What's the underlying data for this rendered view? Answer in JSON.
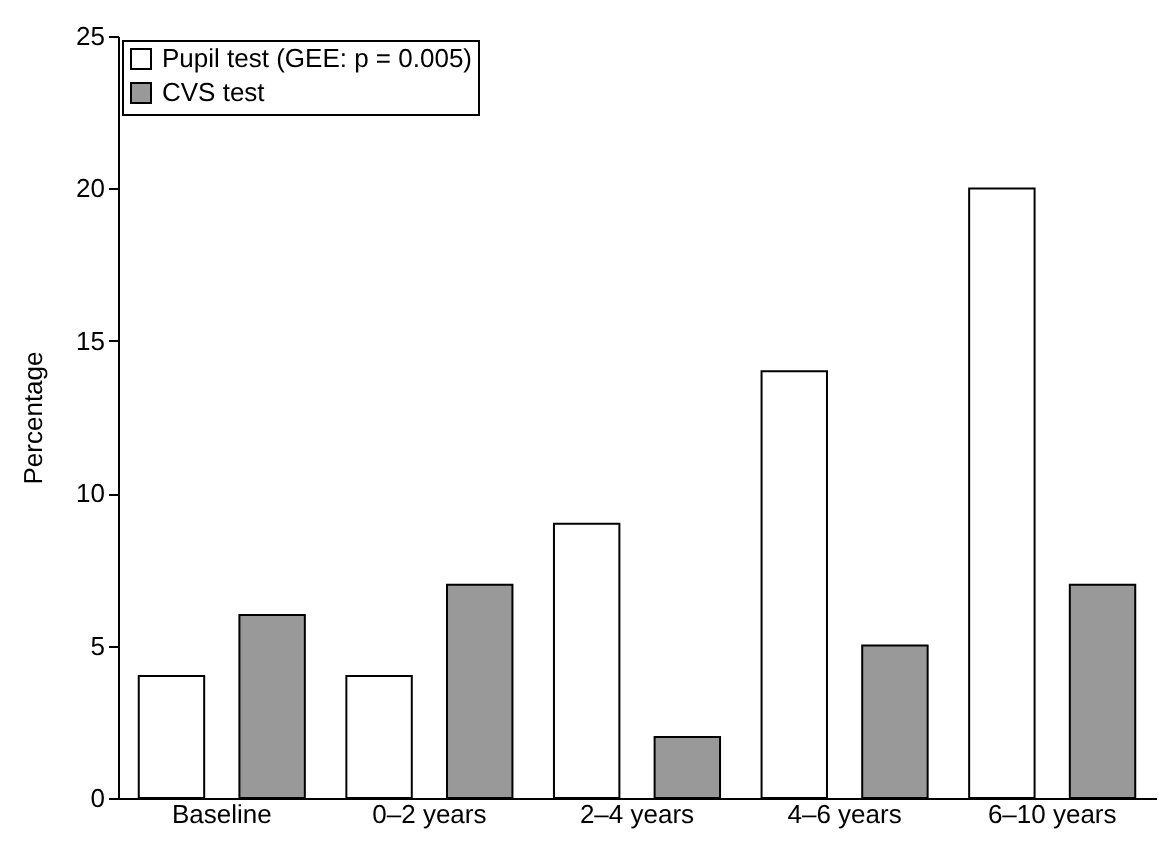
{
  "chart_data": {
    "type": "bar",
    "ylabel": "Percentage",
    "categories": [
      "Baseline",
      "0–2 years",
      "2–4 years",
      "4–6 years",
      "6–10 years"
    ],
    "series": [
      {
        "name": "Pupil test (GEE: p = 0.005)",
        "color": "#ffffff",
        "values": [
          4,
          4,
          9,
          14,
          20
        ]
      },
      {
        "name": "CVS test",
        "color": "#999999",
        "values": [
          6,
          7,
          2,
          5,
          7
        ]
      }
    ],
    "ylim": [
      0,
      25
    ],
    "yticks": [
      0,
      5,
      10,
      15,
      20,
      25
    ],
    "grid": false,
    "legend": "top left"
  }
}
